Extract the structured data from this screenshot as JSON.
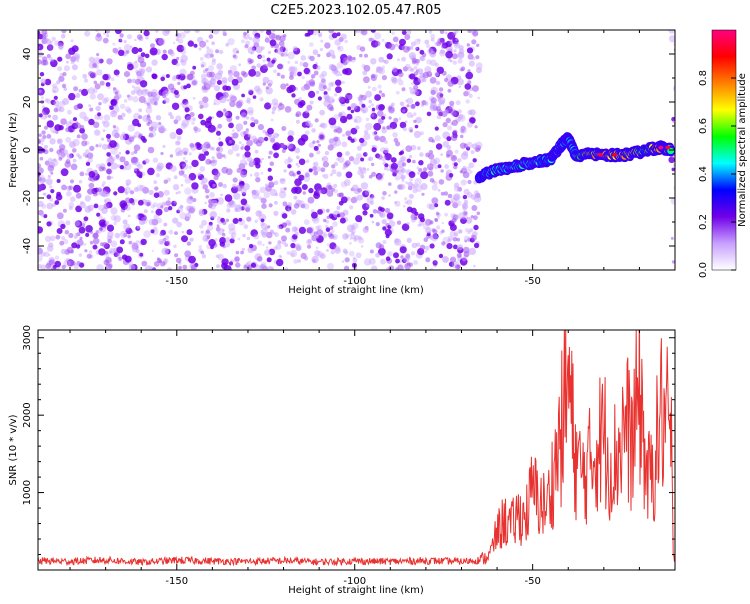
{
  "figure_title": "C2E5.2023.102.05.47.R05",
  "colors": {
    "line": "#e8322f",
    "frame": "#000000",
    "spec_low": "#c8a0ff",
    "spec_mid": "#7000e8"
  },
  "chart_data": [
    {
      "type": "heatmap",
      "title": "",
      "xlabel": "Height of straight line (km)",
      "ylabel": "Frequency (Hz)",
      "xlim": [
        -189,
        -10
      ],
      "ylim": [
        -50,
        50
      ],
      "xticks": [
        -150,
        -100,
        -50
      ],
      "yticks": [
        -40,
        -20,
        0,
        20,
        40
      ],
      "colorbar": {
        "label": "Normalized spectral amplitude",
        "range": [
          0,
          1
        ],
        "ticks": [
          0.0,
          0.2,
          0.4,
          0.6,
          0.8
        ],
        "colormap": [
          "#ffffff",
          "#c8a0ff",
          "#7000e8",
          "#0000ff",
          "#00ffff",
          "#00ff00",
          "#ffff00",
          "#ff8000",
          "#ff0000",
          "#ff0080"
        ]
      },
      "noise_region": {
        "x": [
          -189,
          -65
        ],
        "y": [
          -50,
          50
        ],
        "amplitude": 0.15
      },
      "signal_track": [
        {
          "x": -65,
          "y": -11,
          "amplitude": 0.35
        },
        {
          "x": -60,
          "y": -8,
          "amplitude": 0.45
        },
        {
          "x": -55,
          "y": -7,
          "amplitude": 0.45
        },
        {
          "x": -50,
          "y": -5,
          "amplitude": 0.45
        },
        {
          "x": -45,
          "y": -4,
          "amplitude": 0.4
        },
        {
          "x": -42,
          "y": 2,
          "amplitude": 0.45
        },
        {
          "x": -40,
          "y": 5,
          "amplitude": 0.4
        },
        {
          "x": -38,
          "y": -2,
          "amplitude": 0.45
        },
        {
          "x": -33,
          "y": -2,
          "amplitude": 0.7
        },
        {
          "x": -28,
          "y": -2,
          "amplitude": 0.75
        },
        {
          "x": -23,
          "y": -2,
          "amplitude": 0.7
        },
        {
          "x": -18,
          "y": 0,
          "amplitude": 0.55
        },
        {
          "x": -14,
          "y": 1,
          "amplitude": 0.85
        },
        {
          "x": -11,
          "y": 0,
          "amplitude": 0.5
        }
      ],
      "edge_band": {
        "x": -10.5,
        "y": [
          -50,
          50
        ],
        "amplitude": 0.15
      }
    },
    {
      "type": "line",
      "title": "",
      "xlabel": "Height of straight line (km)",
      "ylabel": "SNR (10 * v/v)",
      "xlim": [
        -189,
        -10
      ],
      "ylim": [
        0,
        3100
      ],
      "xticks": [
        -150,
        -100,
        -50
      ],
      "yticks": [
        1000,
        2000,
        3000
      ],
      "series": [
        {
          "x": [
            -189,
            -180,
            -170,
            -160,
            -150,
            -140,
            -130,
            -120,
            -110,
            -100,
            -90,
            -80,
            -70,
            -65,
            -62,
            -60,
            -58,
            -56,
            -54,
            -52,
            -50,
            -48,
            -46,
            -44,
            -42,
            -40,
            -39,
            -38,
            -36,
            -34,
            -32,
            -30,
            -28,
            -26,
            -24,
            -22,
            -20,
            -19,
            -18,
            -16,
            -14,
            -12,
            -11,
            -10.5,
            -10
          ],
          "values": [
            120,
            110,
            130,
            100,
            125,
            115,
            110,
            120,
            105,
            115,
            110,
            120,
            110,
            130,
            250,
            600,
            800,
            700,
            900,
            850,
            1300,
            1100,
            1000,
            1600,
            2200,
            3100,
            2400,
            1800,
            1500,
            1700,
            2000,
            2200,
            1700,
            1900,
            2400,
            2000,
            2950,
            2300,
            1400,
            1600,
            2550,
            2300,
            2000,
            150,
            150
          ]
        }
      ]
    }
  ]
}
